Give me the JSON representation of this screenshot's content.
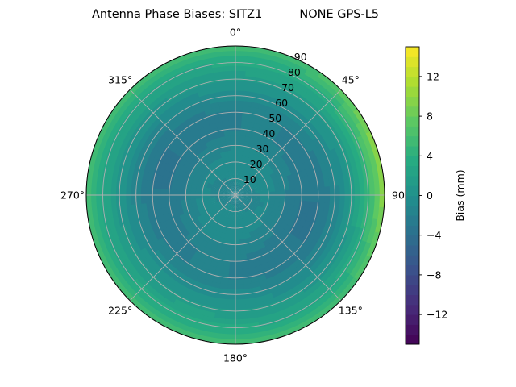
{
  "chart_data": {
    "type": "heatmap",
    "projection": "polar",
    "title": "Antenna Phase Biases: SITZ1          NONE GPS-L5",
    "theta_zero": "top",
    "theta_direction": "clockwise",
    "theta_ticks": [
      {
        "angle": 0,
        "label": "0°"
      },
      {
        "angle": 45,
        "label": "45°"
      },
      {
        "angle": 90,
        "label": "90"
      },
      {
        "angle": 135,
        "label": "135°"
      },
      {
        "angle": 180,
        "label": "180°"
      },
      {
        "angle": 225,
        "label": "225°"
      },
      {
        "angle": 270,
        "label": "270°"
      },
      {
        "angle": 315,
        "label": "315°"
      }
    ],
    "radial_range": [
      0,
      90
    ],
    "radial_ticks": [
      10,
      20,
      30,
      40,
      50,
      60,
      70,
      80,
      90
    ],
    "radial_tick_labels": [
      "10",
      "20",
      "30",
      "40",
      "50",
      "60",
      "70",
      "80",
      "90"
    ],
    "grid": true,
    "colormap": "viridis",
    "colorbar": {
      "label": "Bias (mm)",
      "range": [
        -15,
        15
      ],
      "ticks": [
        -12,
        -8,
        -4,
        0,
        4,
        8,
        12
      ],
      "tick_labels": [
        "−12",
        "−8",
        "−4",
        "0",
        "4",
        "8",
        "12"
      ],
      "position": "right"
    },
    "bias_profile": {
      "zenith_angle": [
        0,
        10,
        20,
        30,
        40,
        50,
        60,
        70,
        80,
        90
      ],
      "bias_mm": [
        -1.5,
        -1.0,
        -0.5,
        -1.5,
        -2.5,
        -2.5,
        -1.0,
        1.0,
        3.0,
        5.5
      ],
      "azimuth_peak_deg": 80,
      "azimuth_peak_extra_mm_at_edge": 5.0
    }
  }
}
